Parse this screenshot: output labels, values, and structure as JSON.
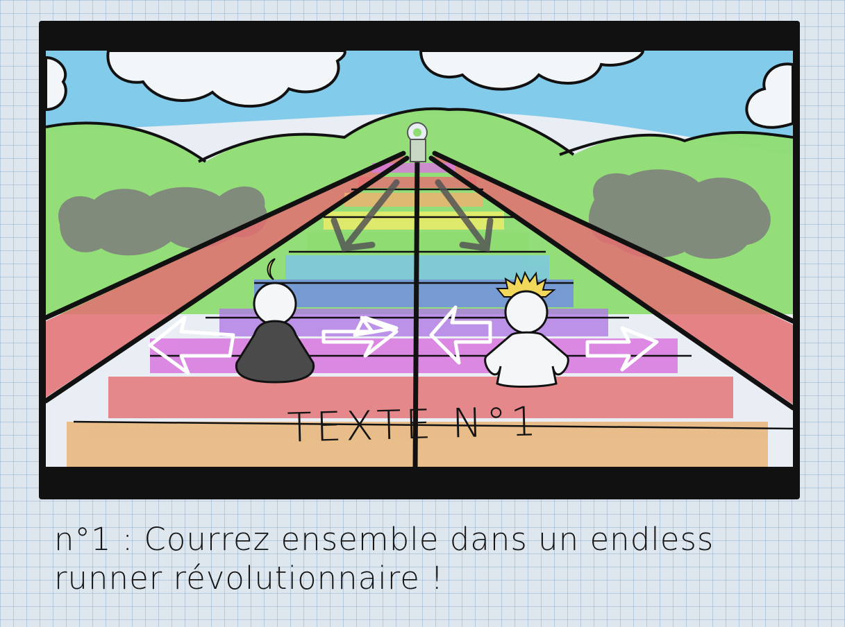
{
  "hud": {
    "label": "TEXTE N°1"
  },
  "caption": {
    "text": "n°1 : Courrez ensemble dans un endless runner révolutionnaire !"
  },
  "scene": {
    "sky_color": "#78c6ea",
    "hill_color": "#8fdc72",
    "track_side_color": "#e46f72",
    "storm_cloud_color": "#7d7d7d",
    "lane_colors": [
      "#e8b270",
      "#e46f72",
      "#d96fe0",
      "#b07ce6",
      "#6f8bea",
      "#7cc7ea",
      "#8fdc72",
      "#f2ee6a",
      "#f0b070",
      "#e46f72",
      "#d97ae0"
    ],
    "left_character": {
      "type": "moon-child",
      "color": "#4a4a4a",
      "crown_color": "#f0e06a"
    },
    "right_character": {
      "type": "sun-child",
      "color": "#f4f6f8",
      "crown_color": "#f2d85a"
    },
    "boss": {
      "type": "lion-statue-icon"
    },
    "icons": [
      "arrow-left-icon",
      "arrow-right-icon",
      "arrow-left-icon",
      "arrow-right-icon",
      "arrow-down-left-icon",
      "arrow-down-right-icon"
    ]
  }
}
